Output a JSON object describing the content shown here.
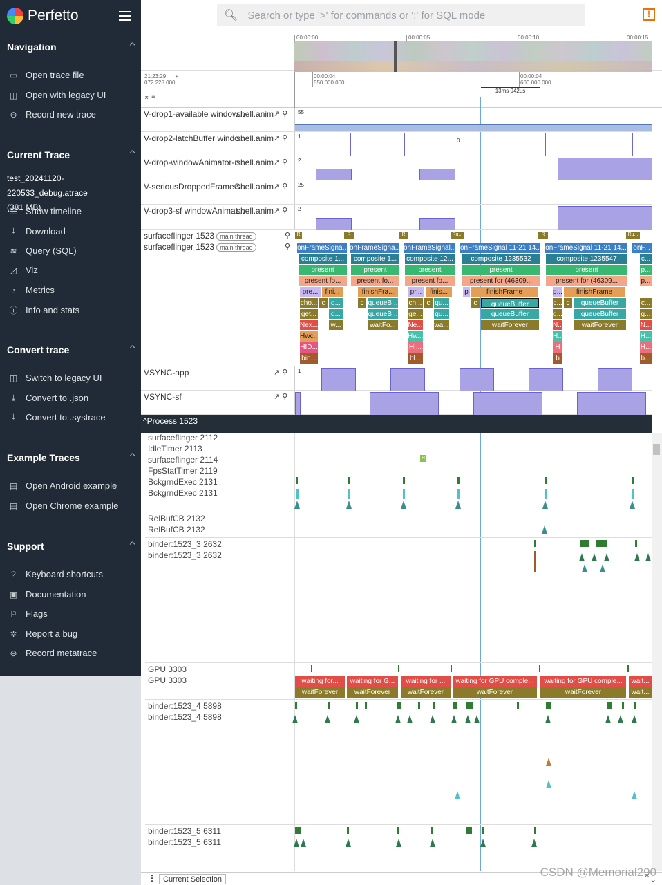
{
  "app": {
    "title": "Perfetto"
  },
  "search": {
    "placeholder": "Search or type '>' for commands or ':' for SQL mode"
  },
  "sidebar": {
    "sections": [
      {
        "title": "Navigation",
        "items": [
          {
            "icon": "folder-open-icon",
            "label": "Open trace file"
          },
          {
            "icon": "window-icon",
            "label": "Open with legacy UI"
          },
          {
            "icon": "record-icon",
            "label": "Record new trace"
          }
        ]
      },
      {
        "title": "Current Trace",
        "trace_name": "test_20241120-220533_debug.atrace",
        "trace_size": "(381 MB)",
        "items": [
          {
            "icon": "timeline-icon",
            "label": "Show timeline"
          },
          {
            "icon": "download-icon",
            "label": "Download"
          },
          {
            "icon": "database-icon",
            "label": "Query (SQL)"
          },
          {
            "icon": "chart-icon",
            "label": "Viz"
          },
          {
            "icon": "speed-icon",
            "label": "Metrics"
          },
          {
            "icon": "info-icon",
            "label": "Info and stats"
          }
        ]
      },
      {
        "title": "Convert trace",
        "items": [
          {
            "icon": "window-icon",
            "label": "Switch to legacy UI"
          },
          {
            "icon": "download-icon",
            "label": "Convert to .json"
          },
          {
            "icon": "download-icon",
            "label": "Convert to .systrace"
          }
        ]
      },
      {
        "title": "Example Traces",
        "items": [
          {
            "icon": "doc-icon",
            "label": "Open Android example"
          },
          {
            "icon": "doc-icon",
            "label": "Open Chrome example"
          }
        ]
      },
      {
        "title": "Support",
        "items": [
          {
            "icon": "help-icon",
            "label": "Keyboard shortcuts"
          },
          {
            "icon": "doc-search-icon",
            "label": "Documentation"
          },
          {
            "icon": "flag-icon",
            "label": "Flags"
          },
          {
            "icon": "bug-icon",
            "label": "Report a bug"
          },
          {
            "icon": "record-icon",
            "label": "Record metatrace"
          }
        ]
      }
    ]
  },
  "overview": {
    "ticks": [
      "00:00:00",
      "00:00:05",
      "00:00:10",
      "00:00:15"
    ]
  },
  "ruler": {
    "origin_time": "21:23:29",
    "origin_ns": "072 228 000",
    "plus": "+",
    "tick1_a": "00:00:04",
    "tick1_b": "550 000 000",
    "tick2_a": "00:00:04",
    "tick2_b": "600 000 000",
    "selection": "13ms 942us"
  },
  "counter_tracks": [
    {
      "name": "V-drop1-available window...",
      "proc": "shell.anim",
      "max": "55"
    },
    {
      "name": "V-drop2-latchBuffer windo...",
      "proc": "shell.anim",
      "max": "1",
      "mid": "0"
    },
    {
      "name": "V-drop-windowAnimator-n...",
      "proc": "shell.anim",
      "max": "2"
    },
    {
      "name": "V-seriousDroppedFrameC...",
      "proc": "shell.anim",
      "max": "25"
    },
    {
      "name": "V-drop3-sf windowAnimat...",
      "proc": "shell.anim",
      "max": "2"
    }
  ],
  "sf_track": {
    "name1": "surfaceflinger 1523",
    "name2": "surfaceflinger 1523",
    "tag": "main thread"
  },
  "sf_slices": {
    "col1": [
      "onFrameSigna...",
      "composite 1...",
      "present",
      "present fo...",
      "fini...",
      "pre...",
      "cho...",
      "c",
      "q...",
      "get...",
      "q...",
      "Nex...",
      "w...",
      "Hwc...",
      "HID...",
      "bin..."
    ],
    "col2": [
      "onFrameSigna...",
      "composite 1...",
      "present",
      "present fo...",
      "finishFra...",
      "c",
      "queueB...",
      "queueB...",
      "waitFo..."
    ],
    "col3": [
      "onFrameSignal...",
      "composite 12...",
      "present",
      "present fo...",
      "pr...",
      "finis...",
      "ch...",
      "c",
      "qu...",
      "ge...",
      "qu...",
      "Ne...",
      "wa...",
      "Hw...",
      "HI...",
      "bl..."
    ],
    "col4": [
      "onFrameSignal 11-21 14...",
      "composite 1235532",
      "present",
      "present for  (46309...",
      "finishFrame",
      "p",
      "c",
      "queueBuffer",
      "queueBuffer",
      "waitForever"
    ],
    "col5": [
      "onFrameSignal 11-21 14...",
      "composite 1235547",
      "present",
      "present for  (46309...",
      "finishFrame",
      "p...",
      "c...",
      "c",
      "queueBuffer",
      "g...",
      "queueBuffer",
      "N...",
      "waitForever",
      "H...",
      "H",
      "b"
    ],
    "col6": [
      "onF...",
      "c...",
      "p...",
      "p...",
      "c...",
      "g...",
      "N...",
      "H...",
      "H...",
      "b..."
    ],
    "markers": [
      "R",
      "R",
      "R",
      "Ru...",
      "R",
      "Ru..."
    ]
  },
  "vsync": [
    {
      "name": "VSYNC-app",
      "max": "1"
    },
    {
      "name": "VSYNC-sf",
      "max": "1"
    }
  ],
  "process": {
    "header": "Process 1523"
  },
  "threads": [
    "surfaceflinger 2112",
    "IdleTimer 2113",
    "surfaceflinger 2114",
    "FpsStatTimer 2119",
    "BckgrndExec 2131",
    "BckgrndExec 2131",
    "RelBufCB 2132",
    "RelBufCB 2132",
    "binder:1523_3 2632",
    "binder:1523_3 2632",
    "GPU 3303",
    "GPU 3303",
    "binder:1523_4 5898",
    "binder:1523_4 5898",
    "binder:1523_5 6311",
    "binder:1523_5 6311"
  ],
  "gpu_slices": {
    "top": [
      "waiting for...",
      "waiting for G...",
      "waiting for ...",
      "waiting for GPU comple...",
      "waiting for GPU comple...",
      "wait..."
    ],
    "bottom": [
      "waitForever",
      "waitForever",
      "waitForever",
      "waitForever",
      "waitForever",
      "wait..."
    ]
  },
  "fps_marker": "R",
  "bottom": {
    "tab": "Current Selection"
  },
  "watermark": "CSDN @Memorial290"
}
